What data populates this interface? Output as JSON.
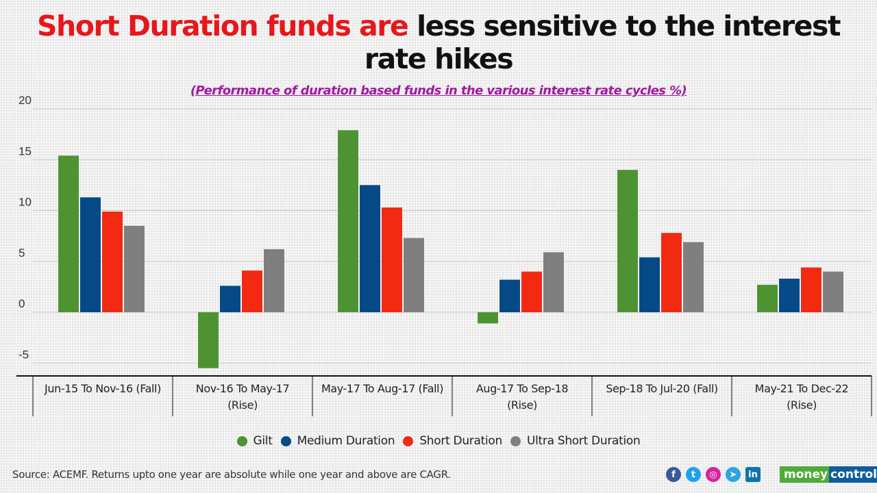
{
  "title": {
    "highlight": "Short Duration funds are",
    "rest_line1": " less sensitive to the interest",
    "line2": "rate hikes",
    "highlight_color": "#e8161b"
  },
  "subtitle": "(Performance of duration based funds in the various interest rate cycles %)",
  "chart_data": {
    "type": "bar",
    "title": "Short Duration funds are less sensitive to the interest rate hikes",
    "subtitle": "(Performance of duration based funds in the various interest rate cycles %)",
    "xlabel": "",
    "ylabel": "",
    "ylim": [
      -6,
      20
    ],
    "yticks": [
      -5,
      0,
      5,
      10,
      15,
      20
    ],
    "grid": true,
    "legend_position": "bottom",
    "categories": [
      [
        "Jun-15 To Nov-16 (Fall)"
      ],
      [
        "Nov-16 To May-17",
        "(Rise)"
      ],
      [
        "May-17 To Aug-17 (Fall)"
      ],
      [
        "Aug-17 To Sep-18",
        "(Rise)"
      ],
      [
        "Sep-18 To Jul-20 (Fall)"
      ],
      [
        "May-21 To Dec-22",
        "(Rise)"
      ]
    ],
    "series": [
      {
        "name": "Gilt",
        "color": "#4e9332",
        "values": [
          15.4,
          -5.5,
          17.9,
          -1.1,
          14.0,
          2.7
        ]
      },
      {
        "name": "Medium Duration",
        "color": "#054a87",
        "values": [
          11.3,
          2.6,
          12.5,
          3.2,
          5.4,
          3.3
        ]
      },
      {
        "name": "Short Duration",
        "color": "#f22a12",
        "values": [
          9.9,
          4.1,
          10.3,
          4.0,
          7.8,
          4.4
        ]
      },
      {
        "name": "Ultra Short Duration",
        "color": "#7f7f7f",
        "values": [
          8.5,
          6.2,
          7.3,
          5.9,
          6.9,
          4.0
        ]
      }
    ]
  },
  "footer": {
    "source": "Source: ACEMF. Returns upto one year are absolute while one year and above are CAGR.",
    "social_icons": [
      {
        "name": "facebook-icon",
        "glyph": "f",
        "color": "#3b5998"
      },
      {
        "name": "twitter-icon",
        "glyph": "t",
        "color": "#1da1f2"
      },
      {
        "name": "instagram-icon",
        "glyph": "◎",
        "color": "#d6249f"
      },
      {
        "name": "telegram-icon",
        "glyph": "➤",
        "color": "#2ca5e0"
      },
      {
        "name": "linkedin-icon",
        "glyph": "in",
        "color": "#0e76a8"
      }
    ],
    "brand_part1": "money",
    "brand_part2": "control"
  }
}
